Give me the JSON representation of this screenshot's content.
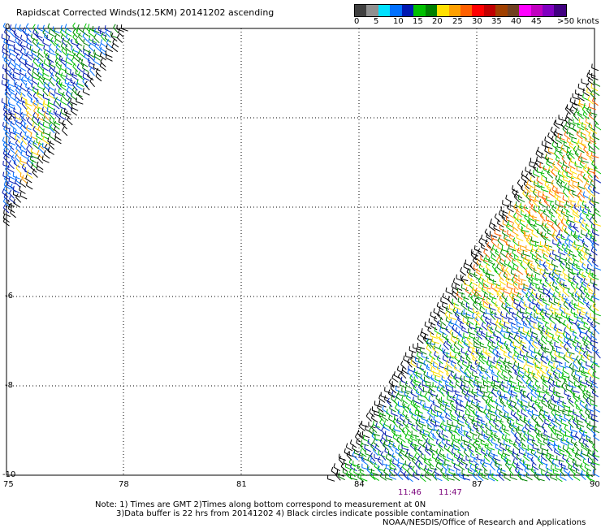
{
  "title": "Rapidscat Corrected Winds(12.5KM) 20141202 ascending",
  "legend": {
    "colors": [
      "#404040",
      "#909090",
      "#00e0ff",
      "#0070ff",
      "#0018b0",
      "#00c000",
      "#008000",
      "#ffe000",
      "#ffa000",
      "#ff6000",
      "#ff0000",
      "#c00000",
      "#a04000",
      "#704020",
      "#ff00ff",
      "#c000c0",
      "#8000c0",
      "#400080"
    ],
    "labels": [
      "0",
      "5",
      "10",
      "15",
      "20",
      "25",
      "30",
      "35",
      "40",
      "45",
      ">50 knots"
    ]
  },
  "map": {
    "lat_labels": [
      "0",
      "-2",
      "-4",
      "-6",
      "-8",
      "-10"
    ],
    "lon_labels": [
      "75",
      "78",
      "81",
      "84",
      "87",
      "90"
    ],
    "grid": true
  },
  "swaths": {
    "west": {
      "colors": [
        "#0018b0",
        "#0070ff",
        "#00c000",
        "#008000",
        "#ffe000",
        "#ffa000"
      ]
    },
    "east": {
      "colors": [
        "#0018b0",
        "#0070ff",
        "#00c000",
        "#008000",
        "#ffe000",
        "#ffa000",
        "#ff6000"
      ]
    }
  },
  "times": [
    "11:46",
    "11:47"
  ],
  "notes": {
    "line1": "Note: 1) Times are GMT 2)Times along bottom correspond to measurement at 0N",
    "line2": "3)Data buffer is 22 hrs from 20141202 4) Black circles indicate possible contamination",
    "credit": "NOAA/NESDIS/Office of Research and Applications"
  }
}
